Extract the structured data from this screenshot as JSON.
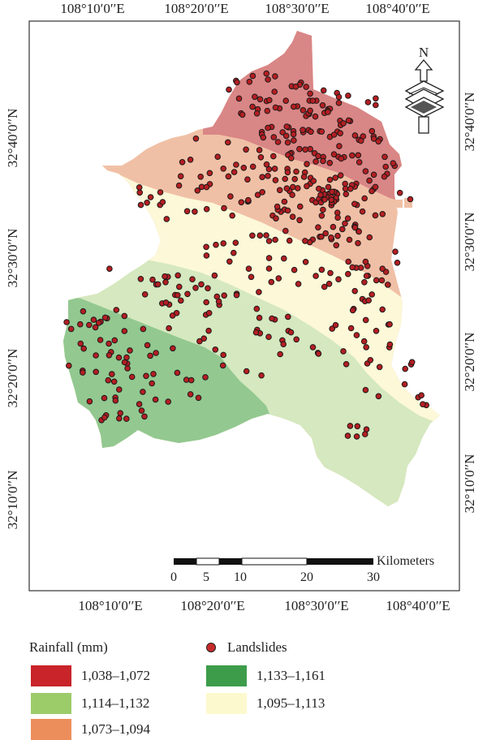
{
  "map": {
    "top_lon_labels": [
      "108°10′0′′E",
      "108°20′0′′E",
      "108°30′0′′E",
      "108°40′0′′E"
    ],
    "bottom_lon_labels": [
      "108°10′0′′E",
      "108°20′0′′E",
      "108°30′0′′E",
      "108°40′0′′E"
    ],
    "left_lat_labels": [
      "32°40′0′′N",
      "32°30′0′′N",
      "32°20′0′′N",
      "32°10′0′′N"
    ],
    "right_lat_labels": [
      "32°40′0′′N",
      "32°30′0′′N",
      "32°20′0′′N",
      "32°10′0′′N"
    ],
    "north_label": "N",
    "scale_bar": {
      "unit": "Kilometers",
      "ticks": [
        "0",
        "5",
        "10",
        "20",
        "30"
      ]
    }
  },
  "legend": {
    "rainfall_title": "Rainfall (mm)",
    "landslides_label": "Landslides",
    "classes": [
      {
        "label": "1,038–1,072",
        "color": "#c8242a"
      },
      {
        "label": "1,114–1,132",
        "color": "#9ccc6a"
      },
      {
        "label": "1,073–1,094",
        "color": "#ec8e5c"
      },
      {
        "label": "1,133–1,161",
        "color": "#3d9c4a"
      },
      {
        "label": "1,095–1,113",
        "color": "#fdf9cf"
      }
    ]
  },
  "colors": {
    "zone_high_north": "#d98686",
    "zone_salmon": "#f0c0a6",
    "zone_cream": "#fcf8d8",
    "zone_light_green": "#d5e8bf",
    "zone_green": "#93c890",
    "landslide_dot": "#b41e22"
  }
}
